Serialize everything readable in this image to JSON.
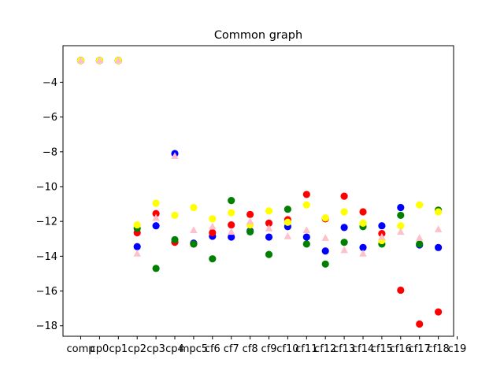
{
  "chart_data": {
    "type": "scatter",
    "title": "Common graph",
    "xlabel": "",
    "ylabel": "",
    "categories": [
      "comp",
      "cp0",
      "cp1",
      "cp2",
      "cp3",
      "cp4",
      "cp5",
      "cf6",
      "cf7",
      "cf8",
      "cf9",
      "cf10",
      "cf11",
      "cf12",
      "cf13",
      "cf14",
      "cf15",
      "cf16",
      "cf17",
      "cf18",
      "cf19"
    ],
    "tick_labels": [
      "comp",
      "cp0",
      "cp1",
      "cp2",
      "cp3",
      "cp4",
      "mpc5",
      "cf6",
      "cf7",
      "cf8",
      "cf9",
      "cf10",
      "cf11",
      "cf12",
      "cf13",
      "cf14",
      "cf15",
      "cf16",
      "cf17",
      "cf18",
      "c19"
    ],
    "ylim": [
      -18.6,
      -1.9
    ],
    "yticks": [
      -18,
      -16,
      -14,
      -12,
      -10,
      -8,
      -6,
      -4
    ],
    "grid": false,
    "series": [
      {
        "color": "#0000ff",
        "marker": "circle",
        "values": [
          -2.75,
          -2.75,
          -2.75,
          -13.45,
          -12.25,
          -8.1,
          -13.25,
          -12.85,
          -12.9,
          -12.55,
          -12.9,
          -12.3,
          -12.9,
          -13.7,
          -12.35,
          -13.5,
          -12.25,
          -11.2,
          -13.35,
          -13.5,
          null
        ]
      },
      {
        "color": "#ff0000",
        "marker": "circle",
        "values": [
          -2.75,
          -2.75,
          -2.75,
          -12.65,
          -11.55,
          -13.2,
          -13.3,
          -12.65,
          -12.2,
          -11.6,
          -12.1,
          -11.9,
          -10.45,
          -11.85,
          -10.55,
          -11.45,
          -12.7,
          -15.95,
          -17.9,
          -17.2,
          null
        ]
      },
      {
        "color": "#008000",
        "marker": "circle",
        "values": [
          -2.75,
          -2.75,
          -2.75,
          -12.4,
          -14.7,
          -13.05,
          -13.3,
          -14.15,
          -10.8,
          -12.6,
          -13.9,
          -11.3,
          -13.3,
          -14.45,
          -13.2,
          -12.3,
          -13.3,
          -11.65,
          -13.3,
          -11.35,
          null
        ]
      },
      {
        "color": "#ffff00",
        "marker": "circle",
        "values": [
          -2.75,
          -2.75,
          -2.75,
          -12.2,
          -10.95,
          -11.65,
          -11.2,
          -11.85,
          -11.5,
          -12.2,
          -11.4,
          -12.05,
          -11.05,
          -11.8,
          -11.45,
          -12.1,
          -13.1,
          -12.25,
          -11.05,
          -11.45,
          null
        ]
      },
      {
        "color": "#ffc0cb",
        "marker": "triangle",
        "values": [
          -2.75,
          -2.75,
          -2.75,
          -13.85,
          -11.8,
          -8.25,
          -12.5,
          -12.3,
          -12.6,
          -12.0,
          -12.4,
          -12.85,
          -12.5,
          -12.95,
          -13.65,
          -13.85,
          -12.9,
          -12.6,
          -12.95,
          -12.45,
          null
        ]
      }
    ]
  }
}
